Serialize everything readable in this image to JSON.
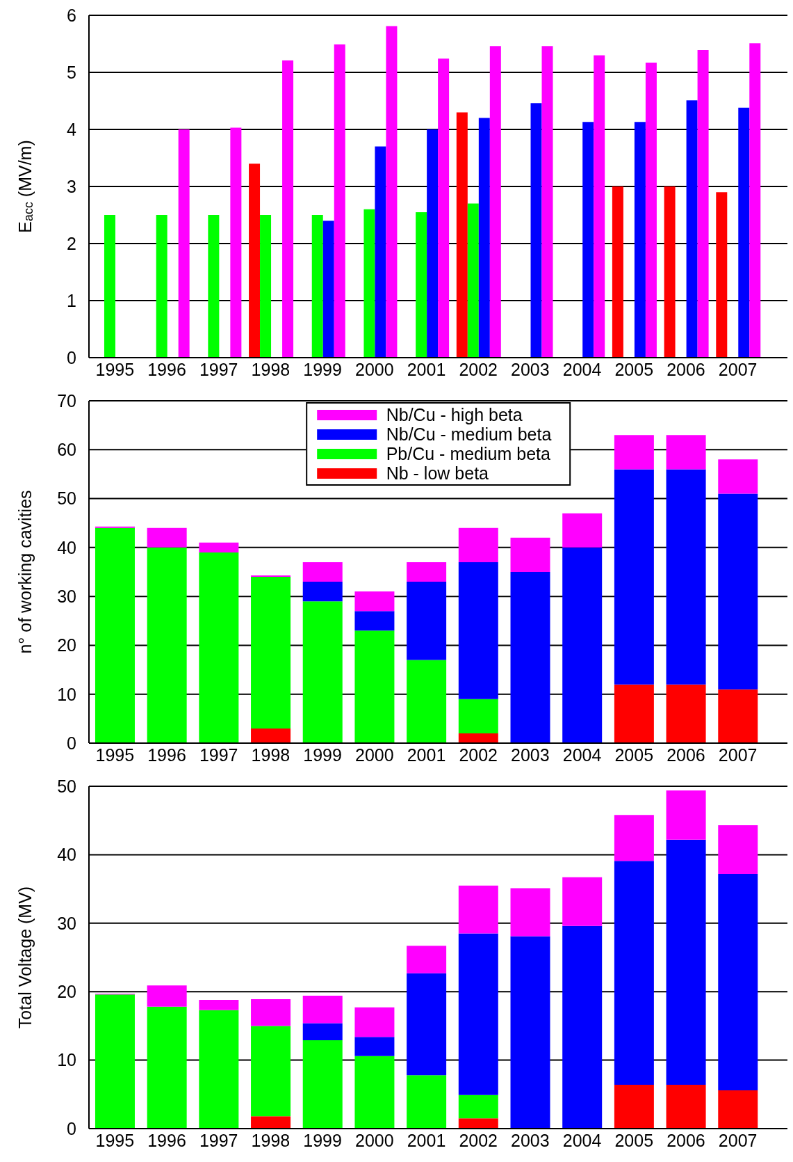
{
  "chart_data": [
    {
      "type": "bar",
      "ylabel": "E$_{acc}$ (MV/m)",
      "categories": [
        "1995",
        "1996",
        "1997",
        "1998",
        "1999",
        "2000",
        "2001",
        "2002",
        "2003",
        "2004",
        "2005",
        "2006",
        "2007"
      ],
      "series": [
        {
          "color": "#ff0000",
          "values": [
            null,
            null,
            null,
            3.4,
            null,
            null,
            null,
            4.3,
            null,
            null,
            3.0,
            3.0,
            2.9
          ]
        },
        {
          "color": "#00ff00",
          "values": [
            2.5,
            2.5,
            2.5,
            2.5,
            2.5,
            2.6,
            2.55,
            2.7,
            null,
            null,
            null,
            null,
            null
          ]
        },
        {
          "color": "#0000ff",
          "values": [
            null,
            null,
            null,
            null,
            2.4,
            3.7,
            4.0,
            4.2,
            4.46,
            4.13,
            4.13,
            4.51,
            4.38
          ]
        },
        {
          "color": "#ff00ff",
          "values": [
            null,
            4.0,
            4.03,
            5.21,
            5.49,
            5.81,
            5.24,
            5.46,
            5.46,
            5.3,
            5.17,
            5.39,
            5.51
          ]
        }
      ],
      "ylim": [
        0,
        6
      ],
      "yticks": [
        0,
        1,
        2,
        3,
        4,
        5,
        6
      ],
      "grid": "y",
      "legend": false
    },
    {
      "type": "bar",
      "ylabel": "n° of working cavities",
      "categories": [
        "1995",
        "1996",
        "1997",
        "1998",
        "1999",
        "2000",
        "2001",
        "2002",
        "2003",
        "2004",
        "2005",
        "2006",
        "2007"
      ],
      "stacked": true,
      "series": [
        {
          "name": "Nb - low beta",
          "color": "#ff0000",
          "values": [
            null,
            null,
            null,
            3,
            null,
            null,
            null,
            2,
            null,
            null,
            12,
            12,
            11
          ]
        },
        {
          "name": "Pb/Cu - medium beta",
          "color": "#00ff00",
          "values": [
            44,
            40,
            39,
            31,
            29,
            23,
            17,
            7,
            null,
            null,
            null,
            null,
            null
          ]
        },
        {
          "name": "Nb/Cu - medium beta",
          "color": "#0000ff",
          "values": [
            null,
            null,
            null,
            null,
            4,
            4,
            16,
            28,
            35,
            40,
            44,
            44,
            40
          ]
        },
        {
          "name": "Nb/Cu - high beta",
          "color": "#ff00ff",
          "values": [
            0.3,
            4,
            2,
            0.3,
            4,
            4,
            4,
            7,
            7,
            7,
            7,
            7,
            7
          ]
        }
      ],
      "ylim": [
        0,
        70
      ],
      "yticks": [
        0,
        10,
        20,
        30,
        40,
        50,
        60,
        70
      ],
      "grid": "y",
      "legend": "top"
    },
    {
      "type": "bar",
      "ylabel": "Total Voltage (MV)",
      "categories": [
        "1995",
        "1996",
        "1997",
        "1998",
        "1999",
        "2000",
        "2001",
        "2002",
        "2003",
        "2004",
        "2005",
        "2006",
        "2007"
      ],
      "stacked": true,
      "series": [
        {
          "color": "#ff0000",
          "values": [
            null,
            null,
            null,
            1.8,
            null,
            null,
            null,
            1.5,
            null,
            null,
            6.4,
            6.4,
            5.6
          ]
        },
        {
          "color": "#00ff00",
          "values": [
            19.6,
            17.8,
            17.3,
            13.2,
            12.9,
            10.6,
            7.8,
            3.4,
            null,
            null,
            null,
            null,
            null
          ]
        },
        {
          "color": "#0000ff",
          "values": [
            null,
            null,
            null,
            null,
            2.5,
            2.8,
            14.9,
            23.6,
            28.1,
            29.6,
            32.7,
            35.8,
            31.6
          ]
        },
        {
          "color": "#ff00ff",
          "values": [
            0.1,
            3.1,
            1.5,
            3.9,
            4.0,
            4.3,
            4.0,
            7.0,
            7.0,
            7.1,
            6.7,
            7.2,
            7.1
          ]
        }
      ],
      "ylim": [
        0,
        50
      ],
      "yticks": [
        0,
        10,
        20,
        30,
        40,
        50
      ],
      "grid": "y",
      "legend": false
    }
  ]
}
